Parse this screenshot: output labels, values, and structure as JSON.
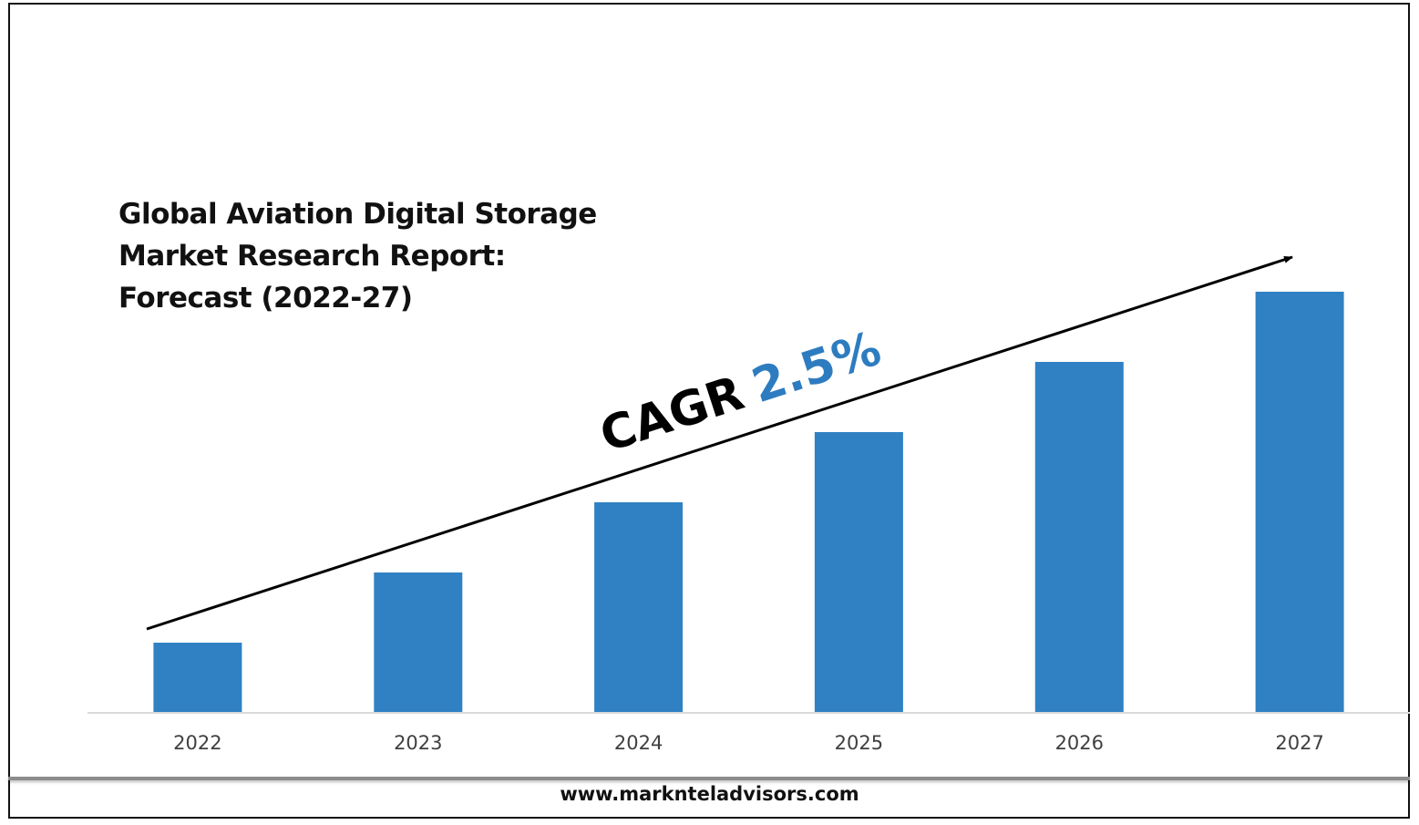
{
  "title_lines": [
    "Global Aviation Digital Storage",
    "Market Research Report:",
    "Forecast (2022-27)"
  ],
  "cagr": {
    "prefix": "CAGR",
    "value": "2.5%",
    "prefix_color": "#000000",
    "value_color": "#2e7cc0"
  },
  "footer": {
    "url": "www.marknteladvisors.com"
  },
  "colors": {
    "bar": "#2f81c3",
    "axis": "#d9d9d9",
    "arrow": "#000000"
  },
  "chart_data": {
    "type": "bar",
    "title": "Global Aviation Digital Storage Market Research Report: Forecast (2022-27)",
    "categories": [
      "2022",
      "2023",
      "2024",
      "2025",
      "2026",
      "2027"
    ],
    "values": [
      1,
      2,
      3,
      4,
      5,
      6
    ],
    "ylim": [
      0,
      6
    ],
    "xlabel": "",
    "ylabel": "",
    "grid": false,
    "legend": "none",
    "annotations": [
      "CAGR 2.5%"
    ]
  }
}
